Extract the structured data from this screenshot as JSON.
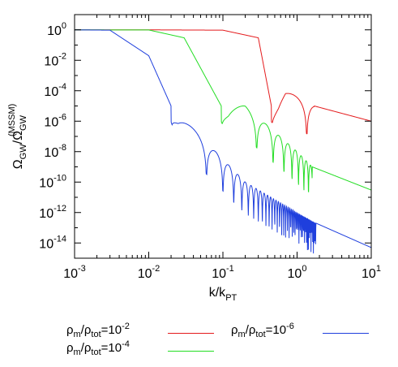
{
  "chart_data": {
    "type": "line",
    "xlabel": "k/k",
    "xlabel_sub": "PT",
    "ylabel_num": "Ω",
    "ylabel_num_sub": "GW",
    "ylabel_den": "/Ω",
    "ylabel_den_sub": "GW",
    "ylabel_den_sup": "(MSSM)",
    "x_scale": "log",
    "y_scale": "log",
    "xlim": [
      0.001,
      10
    ],
    "ylim": [
      1e-15,
      10
    ],
    "x_ticks": [
      {
        "base": "10",
        "exp": "-3"
      },
      {
        "base": "10",
        "exp": "-2"
      },
      {
        "base": "10",
        "exp": "-1"
      },
      {
        "base": "10",
        "exp": "0"
      },
      {
        "base": "10",
        "exp": "1"
      }
    ],
    "y_ticks": [
      {
        "base": "10",
        "exp": "0"
      },
      {
        "base": "10",
        "exp": "-2"
      },
      {
        "base": "10",
        "exp": "-4"
      },
      {
        "base": "10",
        "exp": "-6"
      },
      {
        "base": "10",
        "exp": "-8"
      },
      {
        "base": "10",
        "exp": "-10"
      },
      {
        "base": "10",
        "exp": "-12"
      },
      {
        "base": "10",
        "exp": "-14"
      }
    ],
    "grid": false,
    "legend_placement": "bottom",
    "series": [
      {
        "name": "ρm/ρtot=10-2",
        "color": "#e41a1c",
        "transition_k": 0.3,
        "first_dip_k": 0.45,
        "noise_end_k": 1.7,
        "x": [
          0.001,
          0.01,
          0.1,
          0.3,
          0.45,
          0.7,
          1.7,
          10
        ],
        "y": [
          1,
          1,
          0.95,
          0.3,
          1e-05,
          0.0001,
          1e-05,
          1e-06
        ]
      },
      {
        "name": "ρm/ρtot=10-4",
        "color": "#22dd22",
        "transition_k": 0.03,
        "first_dip_k": 0.095,
        "noise_end_k": 1.6,
        "x": [
          0.001,
          0.01,
          0.03,
          0.095,
          0.2,
          1.0,
          1.6,
          10
        ],
        "y": [
          1,
          0.98,
          0.3,
          1e-05,
          1e-05,
          1e-08,
          1e-09,
          3e-11
        ]
      },
      {
        "name": "ρm/ρtot=10-6",
        "color": "#1f3fdd",
        "transition_k": 0.003,
        "first_dip_k": 0.02,
        "noise_end_k": 1.8,
        "x": [
          0.001,
          0.003,
          0.01,
          0.02,
          0.05,
          0.2,
          1.0,
          1.8,
          10
        ],
        "y": [
          1,
          0.95,
          0.02,
          1e-05,
          1e-07,
          1e-10,
          1e-12,
          2e-13,
          5e-15
        ]
      }
    ]
  },
  "legend": {
    "items": [
      {
        "num": "ρ",
        "num_sub": "m",
        "den": "/ρ",
        "den_sub": "tot",
        "eq": "=10",
        "exp": "-2",
        "color": "#e41a1c"
      },
      {
        "num": "ρ",
        "num_sub": "m",
        "den": "/ρ",
        "den_sub": "tot",
        "eq": "=10",
        "exp": "-4",
        "color": "#22dd22"
      },
      {
        "num": "ρ",
        "num_sub": "m",
        "den": "/ρ",
        "den_sub": "tot",
        "eq": "=10",
        "exp": "-6",
        "color": "#1f3fdd"
      }
    ]
  }
}
